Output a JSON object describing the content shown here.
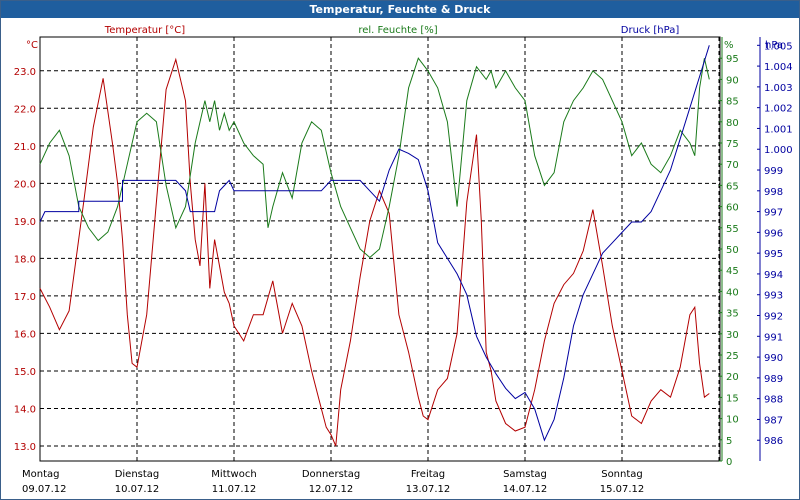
{
  "window": {
    "title": "Temperatur, Feuchte & Druck"
  },
  "colors": {
    "temperature": "#b30000",
    "humidity": "#1a7a1a",
    "pressure": "#0000a0",
    "titlebar": "#1f5e9e",
    "grid": "#000000"
  },
  "chart_data": {
    "type": "line",
    "title": "Temperatur, Feuchte & Druck",
    "grid": true,
    "axes": {
      "temperature": {
        "label": "Temperatur [°C]",
        "unit": "°C",
        "range": [
          12.6,
          23.9
        ],
        "ticks": [
          "13.0",
          "14.0",
          "15.0",
          "16.0",
          "17.0",
          "18.0",
          "19.0",
          "20.0",
          "21.0",
          "22.0",
          "23.0"
        ],
        "tick_values": [
          13,
          14,
          15,
          16,
          17,
          18,
          19,
          20,
          21,
          22,
          23
        ]
      },
      "humidity": {
        "label": "rel. Feuchte [%]",
        "unit": "%",
        "range": [
          0,
          100
        ],
        "ticks": [
          "0",
          "5",
          "10",
          "15",
          "20",
          "25",
          "30",
          "35",
          "40",
          "45",
          "50",
          "55",
          "60",
          "65",
          "70",
          "75",
          "80",
          "85",
          "90",
          "95"
        ],
        "tick_values": [
          0,
          5,
          10,
          15,
          20,
          25,
          30,
          35,
          40,
          45,
          50,
          55,
          60,
          65,
          70,
          75,
          80,
          85,
          90,
          95
        ]
      },
      "pressure": {
        "label": "Druck [hPa]",
        "unit": "hPa",
        "range": [
          985,
          1005.4
        ],
        "ticks": [
          "986",
          "987",
          "988",
          "989",
          "990",
          "991",
          "992",
          "993",
          "994",
          "995",
          "996",
          "997",
          "998",
          "999",
          "1.000",
          "1.001",
          "1.002",
          "1.003",
          "1.004",
          "1.005"
        ],
        "tick_values": [
          986,
          987,
          988,
          989,
          990,
          991,
          992,
          993,
          994,
          995,
          996,
          997,
          998,
          999,
          1000,
          1001,
          1002,
          1003,
          1004,
          1005
        ]
      }
    },
    "x_range_days": [
      0,
      7
    ],
    "x_labels": [
      {
        "day": "Montag",
        "date": "09.07.12",
        "pos": 0
      },
      {
        "day": "Dienstag",
        "date": "10.07.12",
        "pos": 1
      },
      {
        "day": "Mittwoch",
        "date": "11.07.12",
        "pos": 2
      },
      {
        "day": "Donnerstag",
        "date": "12.07.12",
        "pos": 3
      },
      {
        "day": "Freitag",
        "date": "13.07.12",
        "pos": 4
      },
      {
        "day": "Samstag",
        "date": "14.07.12",
        "pos": 5
      },
      {
        "day": "Sonntag",
        "date": "15.07.12",
        "pos": 6
      }
    ],
    "series": [
      {
        "name": "Temperatur [°C]",
        "axis": "temperature",
        "x": [
          0,
          0.1,
          0.2,
          0.3,
          0.45,
          0.55,
          0.65,
          0.75,
          0.8,
          0.85,
          0.9,
          0.95,
          1.0,
          1.1,
          1.2,
          1.3,
          1.4,
          1.5,
          1.55,
          1.6,
          1.65,
          1.7,
          1.75,
          1.8,
          1.85,
          1.9,
          1.95,
          2.0,
          2.1,
          2.2,
          2.3,
          2.4,
          2.5,
          2.6,
          2.7,
          2.8,
          2.9,
          2.95,
          3.0,
          3.05,
          3.1,
          3.2,
          3.3,
          3.4,
          3.5,
          3.6,
          3.7,
          3.8,
          3.9,
          3.95,
          4.0,
          4.1,
          4.2,
          4.3,
          4.4,
          4.5,
          4.55,
          4.6,
          4.65,
          4.7,
          4.8,
          4.9,
          5.0,
          5.1,
          5.2,
          5.3,
          5.4,
          5.5,
          5.6,
          5.7,
          5.8,
          5.9,
          6.0,
          6.1,
          6.2,
          6.3,
          6.4,
          6.5,
          6.6,
          6.7,
          6.75,
          6.8,
          6.85,
          6.9
        ],
        "values": [
          17.2,
          16.7,
          16.1,
          16.6,
          19.5,
          21.5,
          22.8,
          21.0,
          20.0,
          18.5,
          16.5,
          15.2,
          15.1,
          16.5,
          19.5,
          22.5,
          23.3,
          22.2,
          20.0,
          18.5,
          17.8,
          20.0,
          17.2,
          18.5,
          17.8,
          17.1,
          16.8,
          16.2,
          15.8,
          16.5,
          16.5,
          17.4,
          16.0,
          16.8,
          16.2,
          15.0,
          14.0,
          13.5,
          13.3,
          13.0,
          14.5,
          15.8,
          17.5,
          19.0,
          19.8,
          19.2,
          16.5,
          15.5,
          14.3,
          13.8,
          13.7,
          14.5,
          14.8,
          16.0,
          19.5,
          21.3,
          19.0,
          15.5,
          15.0,
          14.2,
          13.6,
          13.4,
          13.5,
          14.5,
          15.8,
          16.8,
          17.3,
          17.6,
          18.2,
          19.3,
          17.8,
          16.2,
          15.0,
          13.8,
          13.6,
          14.2,
          14.5,
          14.3,
          15.1,
          16.5,
          16.7,
          15.2,
          14.3,
          14.4
        ]
      },
      {
        "name": "rel. Feuchte [%]",
        "axis": "humidity",
        "x": [
          0,
          0.1,
          0.2,
          0.3,
          0.4,
          0.5,
          0.6,
          0.7,
          0.8,
          0.9,
          1.0,
          1.1,
          1.2,
          1.3,
          1.4,
          1.5,
          1.6,
          1.7,
          1.75,
          1.8,
          1.85,
          1.9,
          1.95,
          2.0,
          2.1,
          2.2,
          2.3,
          2.35,
          2.4,
          2.5,
          2.6,
          2.7,
          2.8,
          2.9,
          3.0,
          3.1,
          3.2,
          3.3,
          3.4,
          3.5,
          3.6,
          3.7,
          3.8,
          3.9,
          4.0,
          4.1,
          4.2,
          4.3,
          4.4,
          4.5,
          4.6,
          4.65,
          4.7,
          4.8,
          4.9,
          5.0,
          5.1,
          5.2,
          5.3,
          5.4,
          5.5,
          5.6,
          5.7,
          5.8,
          5.9,
          6.0,
          6.1,
          6.2,
          6.3,
          6.4,
          6.5,
          6.6,
          6.7,
          6.75,
          6.8,
          6.85,
          6.9
        ],
        "values": [
          70,
          75,
          78,
          72,
          60,
          55,
          52,
          54,
          60,
          70,
          80,
          82,
          80,
          65,
          55,
          60,
          75,
          85,
          80,
          85,
          78,
          82,
          78,
          80,
          75,
          72,
          70,
          55,
          60,
          68,
          62,
          75,
          80,
          78,
          68,
          60,
          55,
          50,
          48,
          50,
          60,
          72,
          88,
          95,
          92,
          88,
          80,
          60,
          85,
          93,
          90,
          92,
          88,
          92,
          88,
          85,
          72,
          65,
          68,
          80,
          85,
          88,
          92,
          90,
          85,
          80,
          72,
          75,
          70,
          68,
          72,
          78,
          75,
          72,
          88,
          95,
          90
        ]
      },
      {
        "name": "Druck [hPa]",
        "axis": "pressure",
        "x": [
          0,
          0.05,
          0.4,
          0.4,
          0.85,
          0.85,
          1.4,
          1.5,
          1.55,
          1.6,
          1.8,
          1.85,
          1.95,
          2.0,
          2.5,
          2.6,
          2.9,
          3.0,
          3.3,
          3.4,
          3.5,
          3.6,
          3.7,
          3.8,
          3.9,
          4.0,
          4.1,
          4.3,
          4.4,
          4.5,
          4.6,
          4.7,
          4.8,
          4.9,
          5.0,
          5.1,
          5.2,
          5.3,
          5.4,
          5.5,
          5.6,
          5.7,
          5.8,
          5.9,
          6.0,
          6.1,
          6.2,
          6.3,
          6.4,
          6.5,
          6.6,
          6.7,
          6.8,
          6.9
        ],
        "values": [
          996.5,
          997,
          997,
          997.5,
          997.5,
          998.5,
          998.5,
          998,
          997,
          997,
          997,
          998,
          998.5,
          998,
          998,
          998,
          998,
          998.5,
          998.5,
          998,
          997.5,
          999,
          1000,
          999.8,
          999.5,
          998,
          995.5,
          994,
          993,
          991,
          990,
          989.2,
          988.5,
          988,
          988.3,
          987.5,
          986,
          987,
          989,
          991.5,
          993,
          994,
          995,
          995.5,
          996,
          996.5,
          996.5,
          997,
          998,
          999,
          1000.5,
          1002,
          1003.5,
          1005
        ]
      }
    ]
  }
}
